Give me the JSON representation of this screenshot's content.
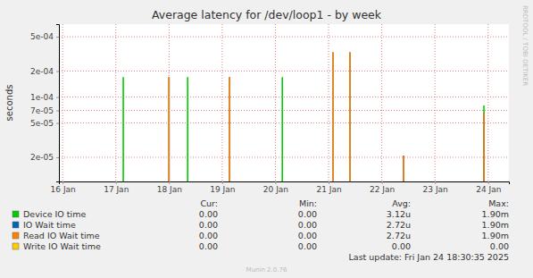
{
  "chart_data": {
    "type": "bar",
    "title": "Average latency for /dev/loop1 - by week",
    "y_label": "seconds",
    "log": "y",
    "grid": true,
    "x": [
      17.14,
      18.0,
      18.35,
      19.14,
      20.13,
      21.08,
      21.4,
      22.41,
      23.92
    ],
    "xlim": [
      15.93,
      24.39
    ],
    "xticks": [
      {
        "value": 16,
        "label": "16 Jan"
      },
      {
        "value": 17,
        "label": "17 Jan"
      },
      {
        "value": 18,
        "label": "18 Jan"
      },
      {
        "value": 19,
        "label": "19 Jan"
      },
      {
        "value": 20,
        "label": "20 Jan"
      },
      {
        "value": 21,
        "label": "21 Jan"
      },
      {
        "value": 22,
        "label": "22 Jan"
      },
      {
        "value": 23,
        "label": "23 Jan"
      },
      {
        "value": 24,
        "label": "24 Jan"
      }
    ],
    "ylim": [
      1.05e-05,
      0.0007
    ],
    "yticks": [
      {
        "value": 2e-05,
        "label": "2e-05"
      },
      {
        "value": 5e-05,
        "label": "5e-05"
      },
      {
        "value": 7e-05,
        "label": "7e-05"
      },
      {
        "value": 0.0001,
        "label": "1e-04"
      },
      {
        "value": 0.0002,
        "label": "2e-04"
      },
      {
        "value": 0.0005,
        "label": "5e-04"
      }
    ],
    "stats_header": [
      "Cur:",
      "Min:",
      "Avg:",
      "Max:"
    ],
    "series": [
      {
        "name": "Device IO time",
        "color": "#00cc00",
        "values": [
          0.00017,
          null,
          0.00017,
          null,
          0.00017,
          null,
          null,
          null,
          8e-05
        ],
        "stats": [
          "0.00",
          "0.00",
          "3.12u",
          "1.90m"
        ]
      },
      {
        "name": "IO Wait time",
        "color": "#0066b3",
        "values": [
          null,
          0.00017,
          null,
          0.00017,
          null,
          0.00033,
          0.00033,
          2.1e-05,
          6.5e-05
        ],
        "stats": [
          "0.00",
          "0.00",
          "2.72u",
          "1.90m"
        ]
      },
      {
        "name": "Read IO Wait time",
        "color": "#ff8000",
        "values": [
          null,
          0.00017,
          null,
          0.00017,
          null,
          0.00033,
          0.00033,
          2.1e-05,
          6.5e-05
        ],
        "stats": [
          "0.00",
          "0.00",
          "2.72u",
          "1.90m"
        ]
      },
      {
        "name": "Write IO Wait time",
        "color": "#ffcc00",
        "values": [
          null,
          null,
          null,
          null,
          null,
          null,
          null,
          null,
          null
        ],
        "stats": [
          "0.00",
          "0.00",
          "0.00",
          "0.00"
        ]
      }
    ],
    "last_update": "Last update: Fri Jan 24 18:30:35 2025",
    "footer": "Munin 2.0.76",
    "watermark": "RRDTOOL / TOBI OETIKER"
  }
}
